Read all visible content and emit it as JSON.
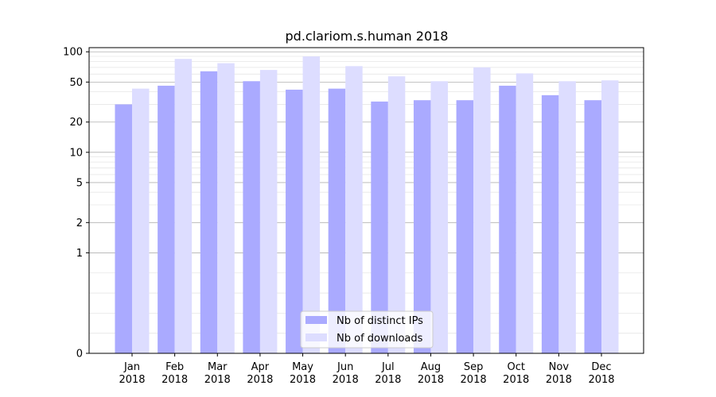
{
  "chart_data": {
    "type": "bar",
    "title": "pd.clariom.s.human 2018",
    "xlabel": "",
    "ylabel": "",
    "y_scale": "symlog",
    "ylim": [
      0,
      110
    ],
    "yticks": [
      {
        "value": 0,
        "label": "0"
      },
      {
        "value": 1,
        "label": "1"
      },
      {
        "value": 2,
        "label": "2"
      },
      {
        "value": 5,
        "label": "5"
      },
      {
        "value": 10,
        "label": "10"
      },
      {
        "value": 20,
        "label": "20"
      },
      {
        "value": 50,
        "label": "50"
      },
      {
        "value": 100,
        "label": "100"
      }
    ],
    "categories": [
      {
        "month": "Jan",
        "year": "2018"
      },
      {
        "month": "Feb",
        "year": "2018"
      },
      {
        "month": "Mar",
        "year": "2018"
      },
      {
        "month": "Apr",
        "year": "2018"
      },
      {
        "month": "May",
        "year": "2018"
      },
      {
        "month": "Jun",
        "year": "2018"
      },
      {
        "month": "Jul",
        "year": "2018"
      },
      {
        "month": "Aug",
        "year": "2018"
      },
      {
        "month": "Sep",
        "year": "2018"
      },
      {
        "month": "Oct",
        "year": "2018"
      },
      {
        "month": "Nov",
        "year": "2018"
      },
      {
        "month": "Dec",
        "year": "2018"
      }
    ],
    "series": [
      {
        "name": "Nb of distinct IPs",
        "color": "#aaaaff",
        "values": [
          30,
          46,
          64,
          51,
          42,
          43,
          32,
          33,
          33,
          46,
          37,
          33
        ]
      },
      {
        "name": "Nb of downloads",
        "color": "#ddddff",
        "values": [
          43,
          85,
          77,
          66,
          90,
          72,
          57,
          51,
          70,
          61,
          51,
          52
        ]
      }
    ],
    "grid": true,
    "legend_position": "bottom-center"
  }
}
